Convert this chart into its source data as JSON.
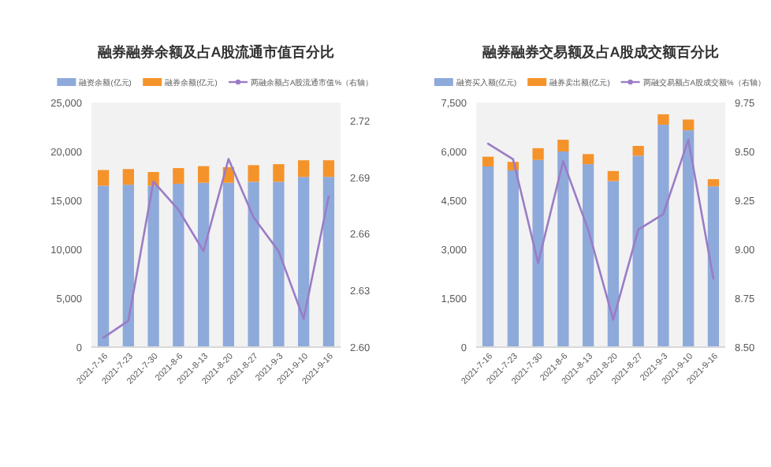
{
  "chart_data": [
    {
      "type": "bar",
      "title": "融券融券余额及占A股流通市值百分比",
      "categories": [
        "2021-7-16",
        "2021-7-23",
        "2021-7-30",
        "2021-8-6",
        "2021-8-13",
        "2021-8-20",
        "2021-8-27",
        "2021-9-3",
        "2021-9-10",
        "2021-9-16"
      ],
      "stacked": true,
      "legend": "top",
      "series": [
        {
          "name": "融资余额(亿元)",
          "color": "#8eaadb",
          "values": [
            16500,
            16600,
            16500,
            16700,
            16800,
            16800,
            16900,
            16900,
            17400,
            17400
          ]
        },
        {
          "name": "融券余额(亿元)",
          "color": "#f5932b",
          "values": [
            1600,
            1600,
            1400,
            1600,
            1700,
            1600,
            1700,
            1800,
            1700,
            1700
          ]
        },
        {
          "name": "两融余额占A股流通市值%（右轴）",
          "type": "line",
          "axis": "y2",
          "color": "#9a7cc6",
          "values": [
            2.605,
            2.614,
            2.688,
            2.673,
            2.651,
            2.7,
            2.669,
            2.651,
            2.615,
            2.68
          ]
        }
      ],
      "ylim": [
        0,
        25000
      ],
      "yticks": [
        {
          "value": 0,
          "label": "0"
        },
        {
          "value": 5000,
          "label": "5,000"
        },
        {
          "value": 10000,
          "label": "10,000"
        },
        {
          "value": 15000,
          "label": "15,000"
        },
        {
          "value": 20000,
          "label": "20,000"
        },
        {
          "value": 25000,
          "label": "25,000"
        }
      ],
      "y2lim": [
        2.6,
        2.73
      ],
      "y2ticks": [
        {
          "value": 2.6,
          "label": "2.60"
        },
        {
          "value": 2.63,
          "label": "2.63"
        },
        {
          "value": 2.66,
          "label": "2.66"
        },
        {
          "value": 2.69,
          "label": "2.69"
        },
        {
          "value": 2.72,
          "label": "2.72"
        }
      ]
    },
    {
      "type": "bar",
      "title": "融券融券交易额及占A股成交额百分比",
      "categories": [
        "2021-7-16",
        "2021-7-23",
        "2021-7-30",
        "2021-8-6",
        "2021-8-13",
        "2021-8-20",
        "2021-8-27",
        "2021-9-3",
        "2021-9-10",
        "2021-9-16"
      ],
      "stacked": true,
      "legend": "top",
      "series": [
        {
          "name": "融资买入额(亿元)",
          "color": "#8eaadb",
          "values": [
            5540,
            5420,
            5740,
            6000,
            5610,
            5090,
            5870,
            6820,
            6650,
            4930
          ]
        },
        {
          "name": "融券卖出额(亿元)",
          "color": "#f5932b",
          "values": [
            300,
            260,
            360,
            360,
            310,
            310,
            300,
            320,
            330,
            220
          ]
        },
        {
          "name": "两融交易额占A股成交额%（右轴）",
          "type": "line",
          "axis": "y2",
          "color": "#9a7cc6",
          "values": [
            9.54,
            9.46,
            8.93,
            9.45,
            9.1,
            8.64,
            9.1,
            9.18,
            9.56,
            8.85
          ]
        }
      ],
      "ylim": [
        0,
        7500
      ],
      "yticks": [
        {
          "value": 0,
          "label": "0"
        },
        {
          "value": 1500,
          "label": "1,500"
        },
        {
          "value": 3000,
          "label": "3,000"
        },
        {
          "value": 4500,
          "label": "4,500"
        },
        {
          "value": 6000,
          "label": "6,000"
        },
        {
          "value": 7500,
          "label": "7,500"
        }
      ],
      "y2lim": [
        8.5,
        9.75
      ],
      "y2ticks": [
        {
          "value": 8.5,
          "label": "8.50"
        },
        {
          "value": 8.75,
          "label": "8.75"
        },
        {
          "value": 9,
          "label": "9.00"
        },
        {
          "value": 9.25,
          "label": "9.25"
        },
        {
          "value": 9.5,
          "label": "9.50"
        },
        {
          "value": 9.75,
          "label": "9.75"
        }
      ]
    }
  ]
}
